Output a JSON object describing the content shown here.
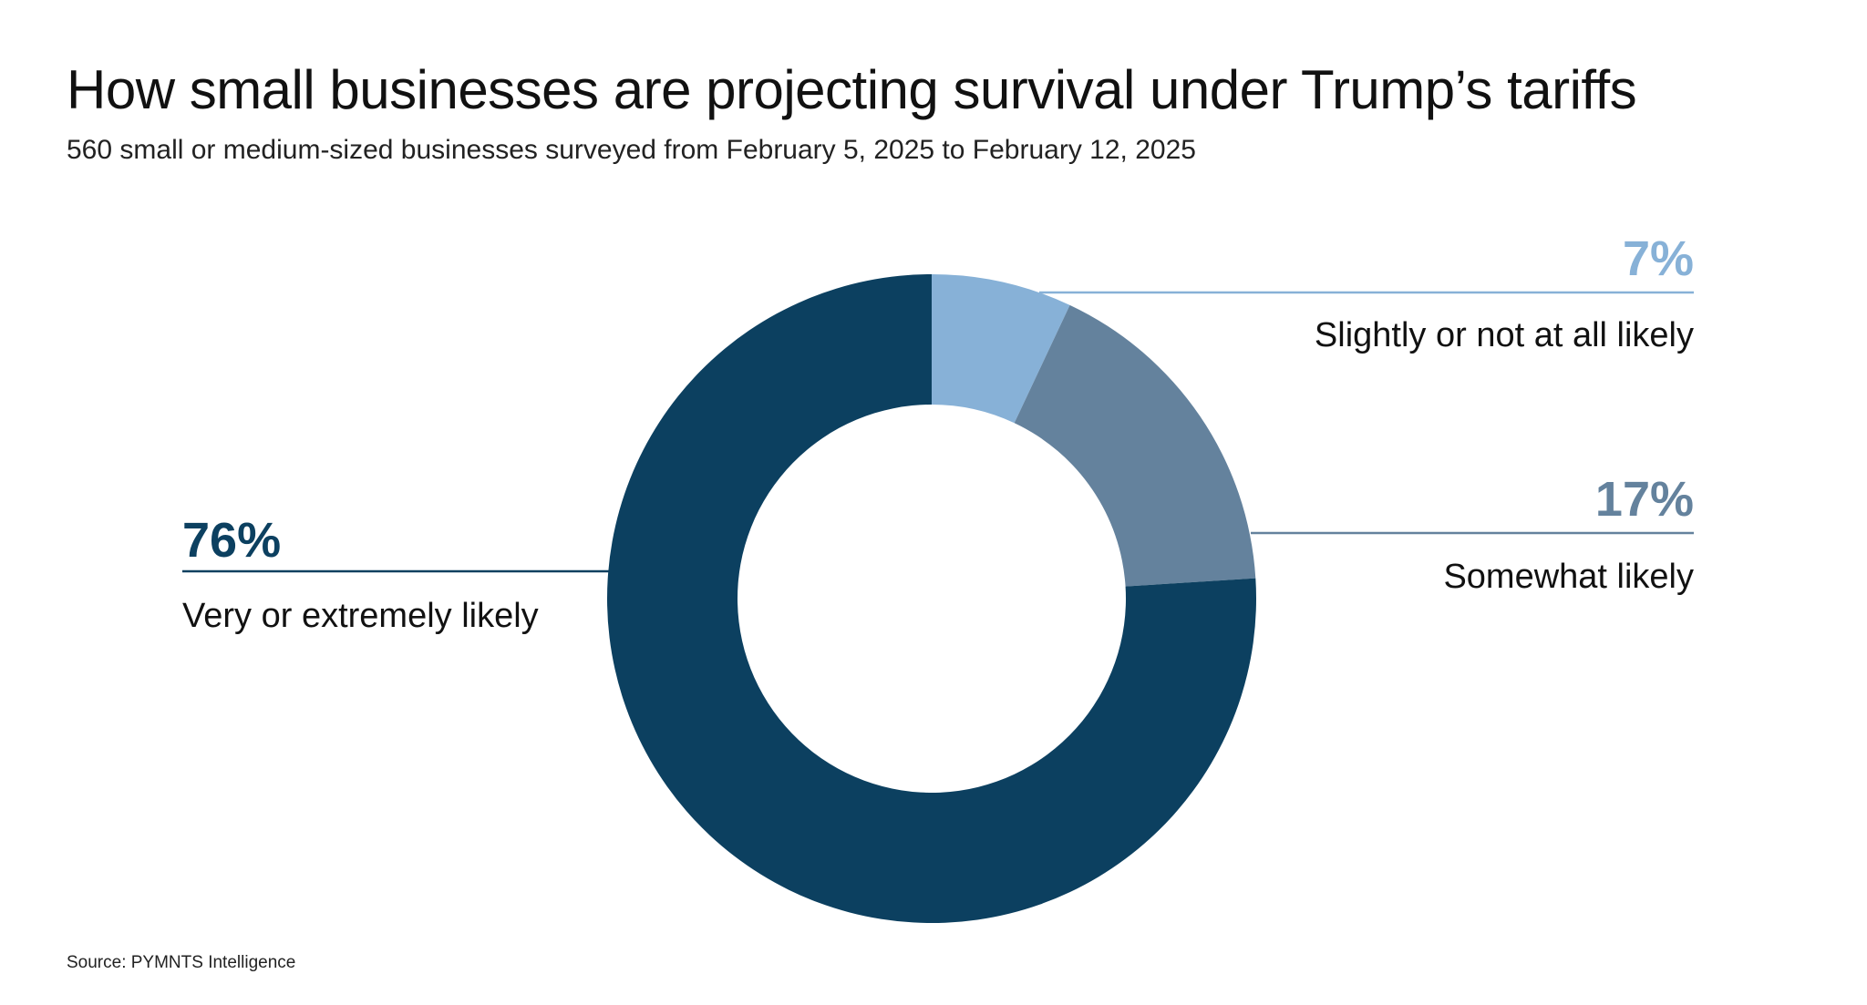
{
  "header": {
    "title": "How small businesses are projecting survival under Trump’s tariffs",
    "subtitle": "560 small or medium-sized businesses surveyed from February 5, 2025 to February 12, 2025"
  },
  "footer": {
    "source": "Source: PYMNTS Intelligence"
  },
  "chart_data": {
    "type": "pie",
    "title": "How small businesses are projecting survival under Trump’s tariffs",
    "subtitle": "560 small or medium-sized businesses surveyed from February 5, 2025 to February 12, 2025",
    "donut": true,
    "start": "top",
    "direction": "clockwise",
    "slices": [
      {
        "label": "Slightly or not at all likely",
        "value": 7,
        "display": "7%",
        "color": "#87b1d7"
      },
      {
        "label": "Somewhat likely",
        "value": 17,
        "display": "17%",
        "color": "#64829d"
      },
      {
        "label": "Very or extremely likely",
        "value": 76,
        "display": "76%",
        "color": "#0c4060"
      }
    ]
  }
}
